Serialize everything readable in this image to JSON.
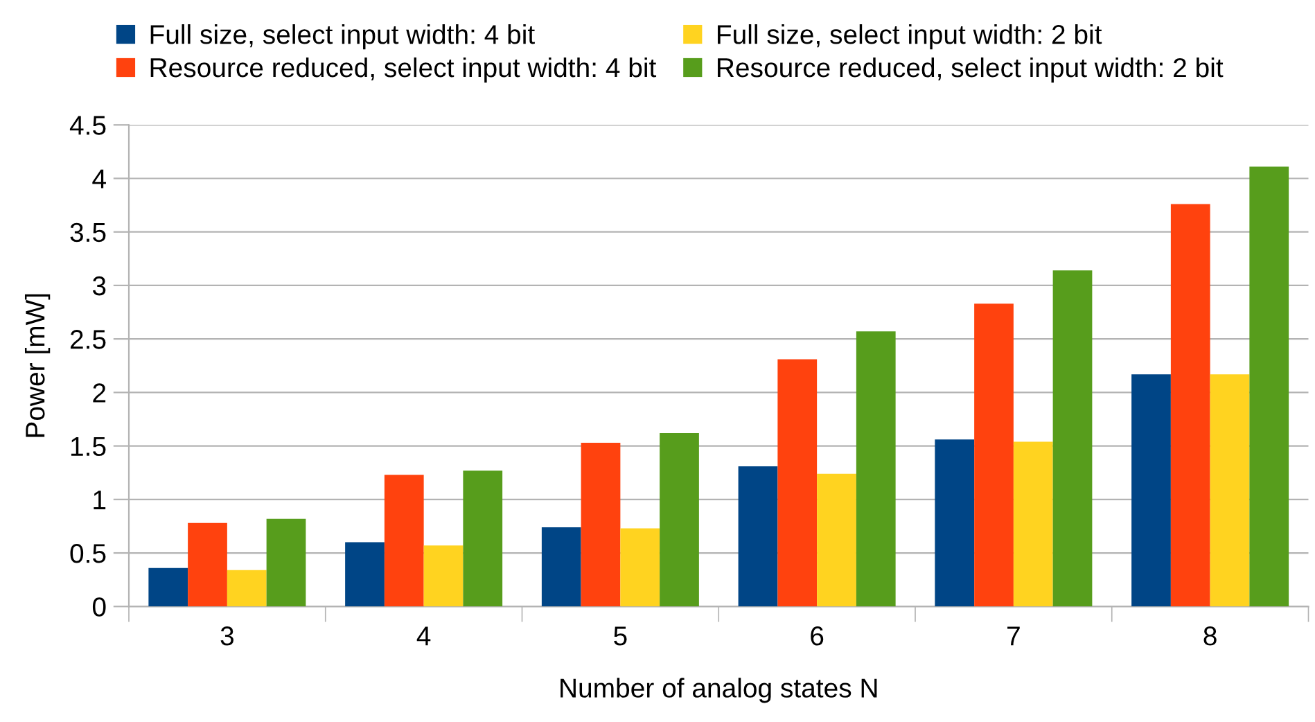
{
  "chart_data": {
    "type": "bar",
    "xlabel": "Number of analog states N",
    "ylabel": "Power [mW]",
    "categories": [
      "3",
      "4",
      "5",
      "6",
      "7",
      "8"
    ],
    "series": [
      {
        "name": "Full size, select input width: 4 bit",
        "color": "#004586",
        "values": [
          0.36,
          0.6,
          0.74,
          1.31,
          1.56,
          2.17
        ]
      },
      {
        "name": "Resource reduced, select input width: 4 bit",
        "color": "#ff420e",
        "values": [
          0.78,
          1.23,
          1.53,
          2.31,
          2.83,
          3.76
        ]
      },
      {
        "name": "Full size, select input width: 2 bit",
        "color": "#ffd320",
        "values": [
          0.34,
          0.57,
          0.73,
          1.24,
          1.54,
          2.17
        ]
      },
      {
        "name": "Resource reduced, select input width: 2 bit",
        "color": "#579d1c",
        "values": [
          0.82,
          1.27,
          1.62,
          2.57,
          3.14,
          4.11
        ]
      }
    ],
    "ylim": [
      0,
      4.5
    ],
    "yticks": [
      0,
      0.5,
      1,
      1.5,
      2,
      2.5,
      3,
      3.5,
      4,
      4.5
    ],
    "grid": "y",
    "legend": "top"
  }
}
